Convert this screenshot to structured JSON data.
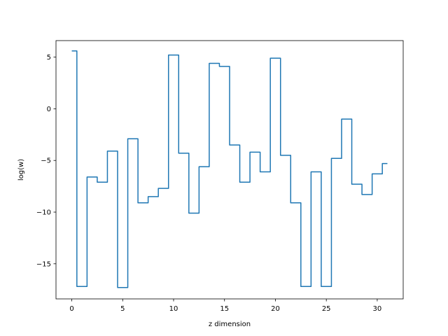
{
  "chart_data": {
    "type": "line",
    "drawstyle": "steps-mid",
    "title": "",
    "xlabel": "z dimension",
    "ylabel": "log(w)",
    "xlim": [
      -1.55,
      32.55
    ],
    "ylim": [
      -18.4,
      6.6
    ],
    "xticks": [
      0,
      5,
      10,
      15,
      20,
      25,
      30
    ],
    "xtick_labels": [
      "0",
      "5",
      "10",
      "15",
      "20",
      "25",
      "30"
    ],
    "yticks": [
      5,
      0,
      -5,
      -10,
      -15
    ],
    "ytick_labels": [
      "5",
      "0",
      "−5",
      "−10",
      "−15"
    ],
    "grid": false,
    "legend": "none",
    "series": [
      {
        "color": "#1f77b4",
        "x": [
          0,
          1,
          2,
          3,
          4,
          5,
          6,
          7,
          8,
          9,
          10,
          11,
          12,
          13,
          14,
          15,
          16,
          17,
          18,
          19,
          20,
          21,
          22,
          23,
          24,
          25,
          26,
          27,
          28,
          29,
          30,
          31
        ],
        "values": [
          5.6,
          -17.2,
          -6.6,
          -7.1,
          -4.1,
          -17.3,
          -2.9,
          -9.1,
          -8.5,
          -7.7,
          5.2,
          -4.3,
          -10.1,
          -5.6,
          4.4,
          4.1,
          -3.5,
          -7.1,
          -4.2,
          -6.1,
          4.9,
          -4.5,
          -9.1,
          -17.2,
          -6.1,
          -17.2,
          -4.8,
          -1.0,
          -7.3,
          -8.3,
          -6.3,
          -5.3
        ]
      }
    ]
  }
}
